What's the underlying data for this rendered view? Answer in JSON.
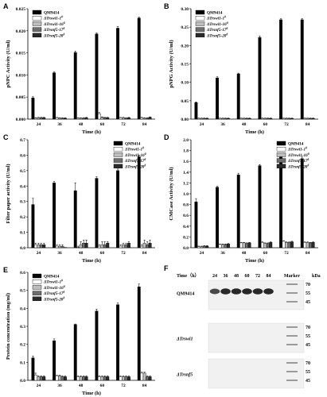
{
  "colors": {
    "QM9414": "#000000",
    "Trswi1_1": "#ffffff",
    "Trswi1_16": "#bdbdbd",
    "Trsnf5_17": "#6e6e6e",
    "Trsnf5_20": "#2a2a2a"
  },
  "legend": [
    {
      "name": "QM9414",
      "italic": false,
      "sup": ""
    },
    {
      "name": "ΔTrswi1-1",
      "italic": true,
      "sup": "#"
    },
    {
      "name": "ΔTrswi1-16",
      "italic": true,
      "sup": "#"
    },
    {
      "name": "ΔTrsnf5-17",
      "italic": true,
      "sup": "#"
    },
    {
      "name": "ΔTrsnf5-20",
      "italic": true,
      "sup": "#"
    }
  ],
  "chart_data": [
    {
      "panel": "A",
      "type": "bar",
      "categories": [
        "24",
        "36",
        "48",
        "60",
        "72",
        "84"
      ],
      "xlabel": "Time (h)",
      "ylabel": "pNPC Activity (U/ml)",
      "ylim": [
        0,
        0.025
      ],
      "yticks": [
        "0.000",
        "0.005",
        "0.010",
        "0.015",
        "0.020",
        "0.025"
      ],
      "legend_position": "top-left",
      "series": [
        {
          "name": "QM9414",
          "values": [
            0.0048,
            0.0105,
            0.0151,
            0.0193,
            0.0206,
            0.0229
          ],
          "err": [
            0.0003,
            0.0002,
            0.0003,
            0.0002,
            0.0004,
            0.0002
          ]
        },
        {
          "name": "ΔTrswi1-1#",
          "values": [
            0.0002,
            0.0003,
            0.0002,
            0.0012,
            0.0003,
            0.0003
          ],
          "err": [
            0.0001,
            0.0001,
            0.0001,
            0.0003,
            0.0001,
            0.0001
          ]
        },
        {
          "name": "ΔTrswi1-16#",
          "values": [
            0.0003,
            0.0002,
            0.0002,
            0.0004,
            0.0003,
            0.0002
          ],
          "err": [
            0.0001,
            0.0001,
            0.0001,
            0.0001,
            0.0001,
            0.0001
          ]
        },
        {
          "name": "ΔTrsnf5-17#",
          "values": [
            0.0003,
            0.0002,
            0.0002,
            0.0003,
            0.0002,
            0.0002
          ],
          "err": [
            0.0001,
            0.0001,
            0.0001,
            0.0001,
            0.0001,
            0.0001
          ]
        },
        {
          "name": "ΔTrsnf5-20#",
          "values": [
            0.0003,
            0.0002,
            0.0003,
            0.0003,
            0.0003,
            0.0004
          ],
          "err": [
            0.0001,
            0.0001,
            0.0001,
            0.0001,
            0.0001,
            0.0001
          ]
        }
      ]
    },
    {
      "panel": "B",
      "type": "bar",
      "categories": [
        "24",
        "36",
        "48",
        "60",
        "72",
        "84"
      ],
      "xlabel": "Time (h)",
      "ylabel": "pNPG Activity (U/ml)",
      "ylim": [
        0,
        0.3
      ],
      "yticks": [
        "0.00",
        "0.05",
        "0.10",
        "0.15",
        "0.20",
        "0.25",
        "0.30"
      ],
      "legend_position": "top-left",
      "series": [
        {
          "name": "QM9414",
          "values": [
            0.045,
            0.112,
            0.123,
            0.222,
            0.27,
            0.27
          ],
          "err": [
            0.002,
            0.003,
            0.002,
            0.004,
            0.003,
            0.003
          ]
        },
        {
          "name": "ΔTrswi1-1#",
          "values": [
            0.002,
            0.002,
            0.002,
            0.002,
            0.002,
            0.002
          ],
          "err": [
            0.001,
            0.001,
            0.001,
            0.001,
            0.001,
            0.001
          ]
        },
        {
          "name": "ΔTrswi1-16#",
          "values": [
            0.002,
            0.002,
            0.002,
            0.002,
            0.002,
            0.002
          ],
          "err": [
            0.001,
            0.001,
            0.001,
            0.001,
            0.001,
            0.001
          ]
        },
        {
          "name": "ΔTrsnf5-17#",
          "values": [
            0.002,
            0.002,
            0.002,
            0.002,
            0.002,
            0.002
          ],
          "err": [
            0.001,
            0.001,
            0.001,
            0.001,
            0.001,
            0.001
          ]
        },
        {
          "name": "ΔTrsnf5-20#",
          "values": [
            0.002,
            0.002,
            0.002,
            0.002,
            0.002,
            0.002
          ],
          "err": [
            0.001,
            0.001,
            0.001,
            0.001,
            0.001,
            0.001
          ]
        }
      ]
    },
    {
      "panel": "C",
      "type": "bar",
      "categories": [
        "24",
        "36",
        "48",
        "60",
        "72",
        "84"
      ],
      "xlabel": "Time (h)",
      "ylabel": "Filter paper activity (U/ml)",
      "ylim": [
        0,
        0.7
      ],
      "yticks": [
        "0.0",
        "0.1",
        "0.2",
        "0.3",
        "0.4",
        "0.5",
        "0.6",
        "0.7"
      ],
      "legend_position": "top-right",
      "series": [
        {
          "name": "QM9414",
          "values": [
            0.28,
            0.42,
            0.37,
            0.45,
            0.5,
            0.59
          ],
          "err": [
            0.04,
            0.01,
            0.05,
            0.01,
            0.01,
            0.01
          ]
        },
        {
          "name": "ΔTrswi1-1#",
          "values": [
            0.02,
            0.01,
            0.0,
            0.01,
            0.01,
            0.01
          ],
          "err": [
            0.01,
            0.01,
            0.01,
            0.01,
            0.01,
            0.01
          ]
        },
        {
          "name": "ΔTrswi1-16#",
          "values": [
            0.02,
            0.01,
            0.02,
            0.02,
            0.02,
            0.03
          ],
          "err": [
            0.01,
            0.01,
            0.02,
            0.02,
            0.01,
            0.02
          ]
        },
        {
          "name": "ΔTrsnf5-17#",
          "values": [
            0.02,
            0.01,
            0.03,
            0.02,
            0.02,
            0.02
          ],
          "err": [
            0.01,
            0.01,
            0.02,
            0.02,
            0.01,
            0.02
          ]
        },
        {
          "name": "ΔTrsnf5-20#",
          "values": [
            0.02,
            0.0,
            0.03,
            0.03,
            0.03,
            0.03
          ],
          "err": [
            0.01,
            0.0,
            0.02,
            0.01,
            0.01,
            0.02
          ]
        }
      ]
    },
    {
      "panel": "D",
      "type": "bar",
      "categories": [
        "24",
        "36",
        "48",
        "60",
        "72",
        "84"
      ],
      "xlabel": "Time (h)",
      "ylabel": "CMCase Activity (U/ml)",
      "ylim": [
        0,
        2.0
      ],
      "yticks": [
        "0.0",
        "0.2",
        "0.4",
        "0.6",
        "0.8",
        "1.0",
        "1.2",
        "1.4",
        "1.6",
        "1.8",
        "2.0"
      ],
      "legend_position": "top-right",
      "series": [
        {
          "name": "QM9414",
          "values": [
            0.85,
            1.12,
            1.35,
            1.52,
            1.68,
            1.65
          ],
          "err": [
            0.06,
            0.02,
            0.03,
            0.02,
            0.03,
            0.03
          ]
        },
        {
          "name": "ΔTrswi1-1#",
          "values": [
            0.02,
            0.06,
            0.09,
            0.1,
            0.12,
            0.1
          ],
          "err": [
            0.01,
            0.01,
            0.01,
            0.01,
            0.01,
            0.01
          ]
        },
        {
          "name": "ΔTrswi1-16#",
          "values": [
            0.02,
            0.06,
            0.09,
            0.08,
            0.1,
            0.1
          ],
          "err": [
            0.01,
            0.01,
            0.01,
            0.01,
            0.01,
            0.01
          ]
        },
        {
          "name": "ΔTrsnf5-17#",
          "values": [
            0.03,
            0.06,
            0.08,
            0.08,
            0.1,
            0.09
          ],
          "err": [
            0.01,
            0.01,
            0.01,
            0.01,
            0.01,
            0.01
          ]
        },
        {
          "name": "ΔTrsnf5-20#",
          "values": [
            0.03,
            0.07,
            0.09,
            0.1,
            0.11,
            0.1
          ],
          "err": [
            0.01,
            0.01,
            0.01,
            0.01,
            0.01,
            0.01
          ]
        }
      ]
    },
    {
      "panel": "E",
      "type": "bar",
      "categories": [
        "24",
        "36",
        "48",
        "60",
        "72",
        "84"
      ],
      "xlabel": "Time (h)",
      "ylabel": "Protein concentration (mg/ml)",
      "ylim": [
        0,
        0.6
      ],
      "yticks": [
        "0.0",
        "0.1",
        "0.2",
        "0.3",
        "0.4",
        "0.5",
        "0.6"
      ],
      "legend_position": "top-left",
      "series": [
        {
          "name": "QM9414",
          "values": [
            0.125,
            0.22,
            0.31,
            0.385,
            0.42,
            0.52
          ],
          "err": [
            0.01,
            0.01,
            0.003,
            0.01,
            0.01,
            0.015
          ]
        },
        {
          "name": "ΔTrswi1-1#",
          "values": [
            0.03,
            0.025,
            0.02,
            0.02,
            0.02,
            0.04
          ],
          "err": [
            0.01,
            0.005,
            0.005,
            0.005,
            0.005,
            0.005
          ]
        },
        {
          "name": "ΔTrswi1-16#",
          "values": [
            0.02,
            0.025,
            0.02,
            0.02,
            0.02,
            0.04
          ],
          "err": [
            0.005,
            0.005,
            0.005,
            0.005,
            0.005,
            0.005
          ]
        },
        {
          "name": "ΔTrsnf5-17#",
          "values": [
            0.02,
            0.02,
            0.02,
            0.02,
            0.02,
            0.02
          ],
          "err": [
            0.005,
            0.005,
            0.005,
            0.005,
            0.005,
            0.005
          ]
        },
        {
          "name": "ΔTrsnf5-20#",
          "values": [
            0.02,
            0.02,
            0.02,
            0.02,
            0.02,
            0.02
          ],
          "err": [
            0.005,
            0.005,
            0.005,
            0.005,
            0.005,
            0.005
          ]
        }
      ]
    }
  ],
  "blot": {
    "panel": "F",
    "time_header": "Time（h）",
    "lanes": [
      "24",
      "36",
      "48",
      "60",
      "72",
      "84"
    ],
    "marker_label": "Marker",
    "kda_label": "kDa",
    "marker_values": [
      "70",
      "55",
      "45"
    ],
    "rows": [
      {
        "label": "QM9414",
        "italic": false,
        "band_strength": [
          0.7,
          1.0,
          1.0,
          1.0,
          1.0,
          1.0
        ]
      },
      {
        "label": "ΔTrswi1",
        "italic": true,
        "band_strength": [
          0,
          0,
          0,
          0,
          0,
          0
        ]
      },
      {
        "label": "ΔTrsnf5",
        "italic": true,
        "band_strength": [
          0,
          0,
          0,
          0,
          0,
          0
        ]
      }
    ]
  }
}
